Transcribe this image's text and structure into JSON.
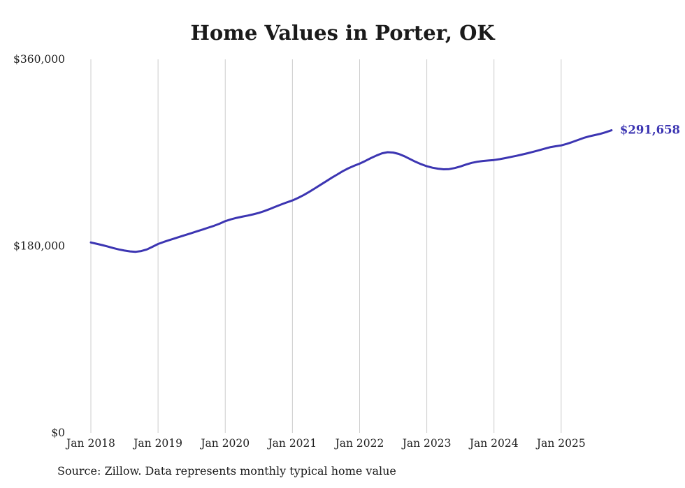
{
  "title": "Home Values in Porter, OK",
  "source": "Source: Zillow. Data represents monthly typical home value",
  "colors": {
    "line": "#3c35b2",
    "grid": "#cccccc",
    "text": "#1a1a1a",
    "tick": "#222222",
    "background": "#ffffff"
  },
  "chart_data": {
    "type": "line",
    "title": "Home Values in Porter, OK",
    "xlabel": "",
    "ylabel": "",
    "frequency": "monthly",
    "start_month": "2018-01",
    "end_month": "2025-10",
    "ylim": [
      0,
      360000
    ],
    "grid": "vertical-only",
    "legend": "none",
    "x_tick_labels": [
      "Jan 2018",
      "Jan 2019",
      "Jan 2020",
      "Jan 2021",
      "Jan 2022",
      "Jan 2023",
      "Jan 2024",
      "Jan 2025"
    ],
    "y_tick_labels": [
      "$0",
      "$180,000",
      "$360,000"
    ],
    "y_tick_values": [
      0,
      180000,
      360000
    ],
    "end_value": 291658,
    "end_value_label": "$291,658",
    "series": [
      {
        "name": "Typical home value",
        "values": [
          183500,
          182300,
          181000,
          179600,
          178100,
          176800,
          175700,
          174900,
          174500,
          175200,
          176800,
          179300,
          182000,
          184000,
          185800,
          187500,
          189200,
          190900,
          192600,
          194300,
          196000,
          197800,
          199600,
          201600,
          204000,
          205800,
          207200,
          208300,
          209400,
          210600,
          212000,
          213800,
          215800,
          218000,
          220100,
          222100,
          224000,
          226400,
          229200,
          232300,
          235600,
          239000,
          242400,
          245800,
          249000,
          252200,
          255000,
          257400,
          259500,
          262000,
          264800,
          267300,
          269400,
          270500,
          270200,
          268800,
          266600,
          263900,
          261200,
          258900,
          257000,
          255600,
          254600,
          254000,
          254200,
          255200,
          256800,
          258600,
          260200,
          261300,
          262000,
          262500,
          263000,
          263800,
          264800,
          265900,
          267000,
          268200,
          269500,
          270900,
          272300,
          273800,
          275300,
          276200,
          277000,
          278500,
          280300,
          282300,
          284200,
          285800,
          287000,
          288200,
          289800,
          291658
        ]
      }
    ]
  }
}
